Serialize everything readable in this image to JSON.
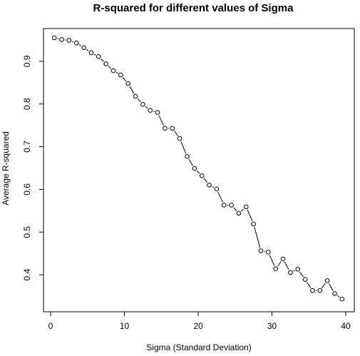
{
  "chart_data": {
    "type": "line",
    "title": "R-squared for different values of Sigma",
    "xlabel": "Sigma (Standard Deviation)",
    "ylabel": "Average R-squared",
    "xlim": [
      0,
      40
    ],
    "ylim": [
      0.34,
      0.955
    ],
    "x_ticks": [
      0,
      10,
      20,
      30,
      40
    ],
    "y_ticks": [
      0.4,
      0.5,
      0.6,
      0.7,
      0.8,
      0.9
    ],
    "grid": false,
    "line_style": "dashed-with-open-circles",
    "x": [
      0.5,
      1.5,
      2.5,
      3.5,
      4.5,
      5.5,
      6.5,
      7.5,
      8.5,
      9.5,
      10.5,
      11.5,
      12.5,
      13.5,
      14.5,
      15.5,
      16.5,
      17.5,
      18.5,
      19.5,
      20.5,
      21.5,
      22.5,
      23.5,
      24.5,
      25.5,
      26.5,
      27.5,
      28.5,
      29.5,
      30.5,
      31.5,
      32.5,
      33.5,
      34.5,
      35.5,
      36.5,
      37.5,
      38.5,
      39.5
    ],
    "y": [
      0.955,
      0.951,
      0.949,
      0.943,
      0.932,
      0.92,
      0.911,
      0.894,
      0.878,
      0.868,
      0.848,
      0.818,
      0.799,
      0.785,
      0.78,
      0.743,
      0.743,
      0.719,
      0.677,
      0.649,
      0.632,
      0.61,
      0.601,
      0.563,
      0.563,
      0.544,
      0.559,
      0.519,
      0.456,
      0.453,
      0.414,
      0.437,
      0.405,
      0.413,
      0.389,
      0.363,
      0.363,
      0.386,
      0.356,
      0.343
    ]
  }
}
